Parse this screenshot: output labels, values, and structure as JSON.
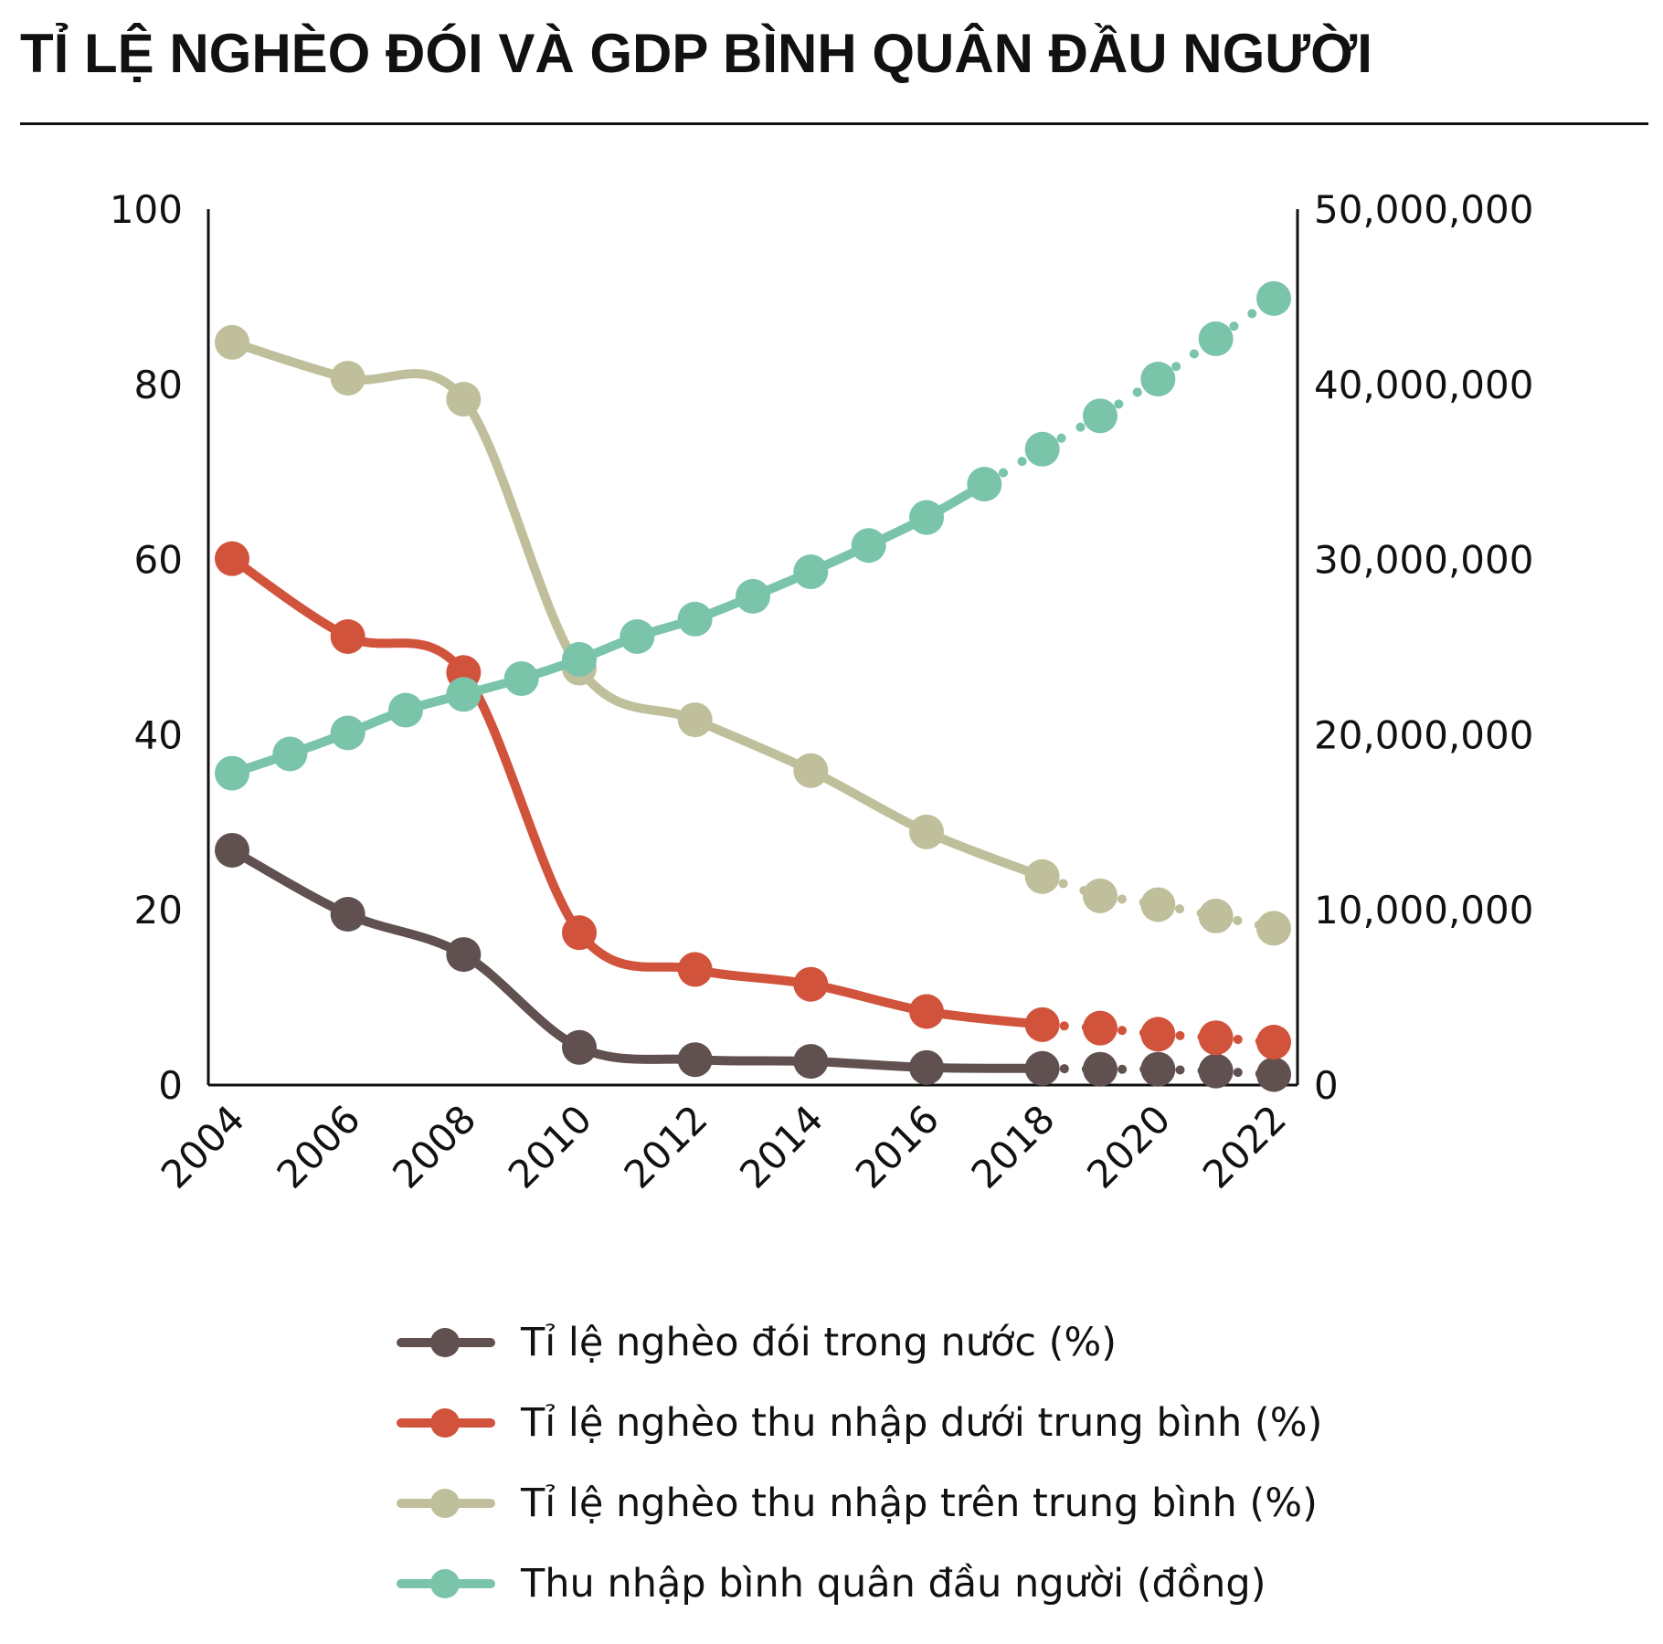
{
  "chart_data": {
    "type": "line",
    "title": "TỈ LỆ NGHÈO ĐÓI VÀ GDP BÌNH QUÂN ĐẦU NGƯỜI",
    "x_tick_labels": [
      "2004",
      "2006",
      "2008",
      "2010",
      "2012",
      "2014",
      "2016",
      "2018",
      "2020",
      "2022"
    ],
    "y_left": {
      "ylim": [
        0,
        100
      ],
      "ticks": [
        "0",
        "20",
        "40",
        "60",
        "80",
        "100"
      ]
    },
    "y_right": {
      "ylim": [
        0,
        50000000
      ],
      "ticks": [
        "0",
        "10,000,000",
        "20,000,000",
        "30,000,000",
        "40,000,000",
        "50,000,000"
      ]
    },
    "grid": false,
    "legend_position": "bottom",
    "series": [
      {
        "name": "Tỉ lệ nghèo đói trong nước (%)",
        "color": "#615050",
        "axis": "left",
        "points": [
          [
            2004,
            26.8
          ],
          [
            2006,
            19.5
          ],
          [
            2008,
            14.9
          ],
          [
            2010,
            4.3
          ],
          [
            2012,
            2.9
          ],
          [
            2014,
            2.7
          ],
          [
            2016,
            2.0
          ],
          [
            2018,
            1.9
          ],
          [
            2019,
            1.8
          ],
          [
            2020,
            1.8
          ],
          [
            2021,
            1.6
          ],
          [
            2022,
            1.2
          ]
        ],
        "solid_until": 2018
      },
      {
        "name": "Tỉ lệ nghèo thu nhập dưới trung bình (%)",
        "color": "#d1533b",
        "axis": "left",
        "points": [
          [
            2004,
            60.1
          ],
          [
            2006,
            51.2
          ],
          [
            2008,
            47.1
          ],
          [
            2010,
            17.4
          ],
          [
            2012,
            13.2
          ],
          [
            2014,
            11.5
          ],
          [
            2016,
            8.4
          ],
          [
            2018,
            6.9
          ],
          [
            2019,
            6.5
          ],
          [
            2020,
            5.8
          ],
          [
            2021,
            5.4
          ],
          [
            2022,
            4.9
          ]
        ],
        "solid_until": 2018
      },
      {
        "name": "Tỉ lệ nghèo thu nhập trên trung bình (%)",
        "color": "#bfbf9b",
        "axis": "left",
        "points": [
          [
            2004,
            84.8
          ],
          [
            2006,
            80.7
          ],
          [
            2008,
            78.3
          ],
          [
            2010,
            47.6
          ],
          [
            2012,
            41.7
          ],
          [
            2014,
            35.9
          ],
          [
            2016,
            28.9
          ],
          [
            2018,
            23.8
          ],
          [
            2019,
            21.6
          ],
          [
            2020,
            20.6
          ],
          [
            2021,
            19.3
          ],
          [
            2022,
            17.9
          ]
        ],
        "solid_until": 2018
      },
      {
        "name": "Thu nhập bình quân đầu người (đồng)",
        "color": "#7ac4aa",
        "axis": "right",
        "points": [
          [
            2004,
            17800000
          ],
          [
            2005,
            18900000
          ],
          [
            2006,
            20100000
          ],
          [
            2007,
            21400000
          ],
          [
            2008,
            22300000
          ],
          [
            2009,
            23200000
          ],
          [
            2010,
            24300000
          ],
          [
            2011,
            25600000
          ],
          [
            2012,
            26600000
          ],
          [
            2013,
            27900000
          ],
          [
            2014,
            29300000
          ],
          [
            2015,
            30800000
          ],
          [
            2016,
            32400000
          ],
          [
            2017,
            34300000
          ],
          [
            2018,
            36300000
          ],
          [
            2019,
            38200000
          ],
          [
            2020,
            40300000
          ],
          [
            2021,
            42600000
          ],
          [
            2022,
            44900000
          ]
        ],
        "solid_until": 2017
      }
    ]
  }
}
